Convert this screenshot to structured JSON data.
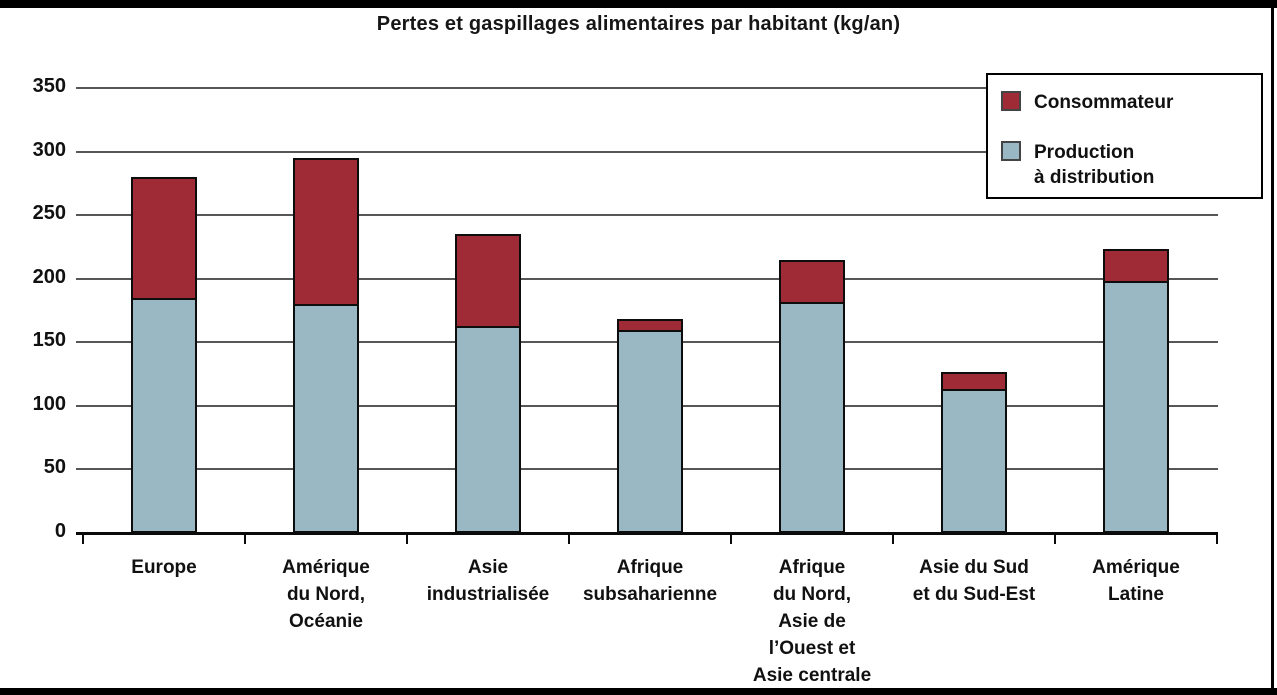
{
  "chart_data": {
    "type": "bar",
    "stacked": true,
    "title": "Pertes et gaspillages alimentaires par habitant (kg/an)",
    "units": "kg/an",
    "categories": [
      "Europe",
      "Amérique du Nord, Océanie",
      "Asie industrialisée",
      "Afrique subsaharienne",
      "Afrique du Nord, Asie de l’Ouest et Asie centrale",
      "Asie du Sud et du Sud-Est",
      "Amérique Latine"
    ],
    "category_label_lines": [
      [
        "Europe"
      ],
      [
        "Amérique",
        "du Nord,",
        "Océanie"
      ],
      [
        "Asie",
        "industrialisée"
      ],
      [
        "Afrique",
        "subsaharienne"
      ],
      [
        "Afrique",
        "du Nord,",
        "Asie de",
        "l’Ouest et",
        "Asie centrale"
      ],
      [
        "Asie du Sud",
        "et du Sud-Est"
      ],
      [
        "Amérique",
        "Latine"
      ]
    ],
    "series": [
      {
        "name": "Production à distribution",
        "color": "#99B8C4",
        "values": [
          185,
          180,
          163,
          160,
          182,
          113,
          198
        ]
      },
      {
        "name": "Consommateur",
        "color": "#9E2B35",
        "values": [
          95,
          115,
          72,
          8,
          33,
          14,
          25
        ]
      }
    ],
    "totals": [
      280,
      295,
      235,
      168,
      215,
      127,
      223
    ],
    "xlabel": "",
    "ylabel": "",
    "ylim": [
      0,
      350
    ],
    "yticks": [
      0,
      50,
      100,
      150,
      200,
      250,
      300,
      350
    ],
    "grid": "horizontal",
    "legend_position": "top-right"
  },
  "legend": {
    "items": [
      {
        "label": "Consommateur",
        "color": "#9E2B35"
      },
      {
        "label": "Production\nà distribution",
        "color": "#99B8C4"
      }
    ]
  }
}
